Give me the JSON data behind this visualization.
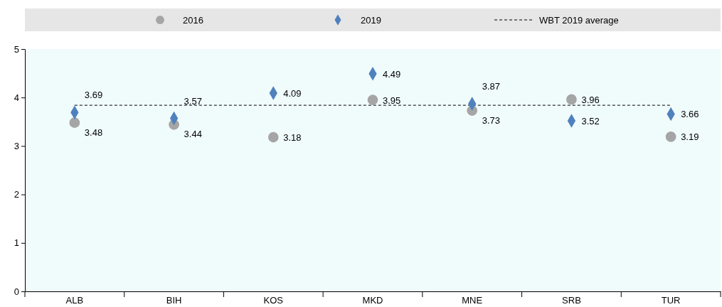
{
  "chart_data": {
    "type": "scatter",
    "categories": [
      "ALB",
      "BIH",
      "KOS",
      "MKD",
      "MNE",
      "SRB",
      "TUR"
    ],
    "series": [
      {
        "name": "2016",
        "color": "#a5a5a5",
        "marker": "circle",
        "values": [
          3.48,
          3.44,
          3.18,
          3.95,
          3.73,
          3.96,
          3.19
        ]
      },
      {
        "name": "2019",
        "color": "#4f81bd",
        "marker": "diamond",
        "values": [
          3.69,
          3.57,
          4.09,
          4.49,
          3.87,
          3.52,
          3.66
        ]
      }
    ],
    "ylim": [
      0,
      5
    ],
    "yticks": [
      0,
      1,
      2,
      3,
      4,
      5
    ],
    "grid": false,
    "legend": "top",
    "data_labels": true,
    "ref_lines": [
      {
        "axis": "y",
        "value": 3.84,
        "label": "WBT 2019 average",
        "color": "#000000",
        "line_style": "dashed"
      }
    ]
  }
}
